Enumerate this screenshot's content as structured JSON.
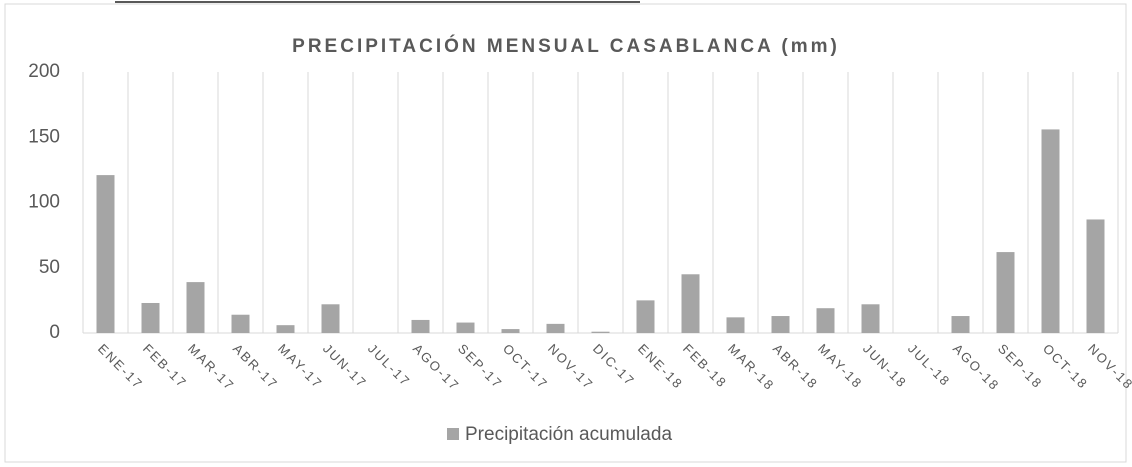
{
  "chart_data": {
    "type": "bar",
    "title": "PRECIPITACIÓN MENSUAL CASABLANCA (mm)",
    "categories": [
      "ENE-17",
      "FEB-17",
      "MAR-17",
      "ABR-17",
      "MAY-17",
      "JUN-17",
      "JUL-17",
      "AGO-17",
      "SEP-17",
      "OCT-17",
      "NOV-17",
      "DIC-17",
      "ENE-18",
      "FEB-18",
      "MAR-18",
      "ABR-18",
      "MAY-18",
      "JUN-18",
      "JUL-18",
      "AGO-18",
      "SEP-18",
      "OCT-18",
      "NOV-18"
    ],
    "series": [
      {
        "name": "Precipitación acumulada",
        "color": "#a5a5a5",
        "values": [
          121,
          23,
          39,
          14,
          6,
          22,
          0,
          10,
          8,
          3,
          7,
          1,
          25,
          45,
          12,
          13,
          19,
          22,
          0,
          13,
          62,
          156,
          87
        ]
      }
    ],
    "ylim": [
      0,
      200
    ],
    "yticks": [
      0,
      50,
      100,
      150,
      200
    ],
    "grid": true,
    "legend": "bottom"
  }
}
